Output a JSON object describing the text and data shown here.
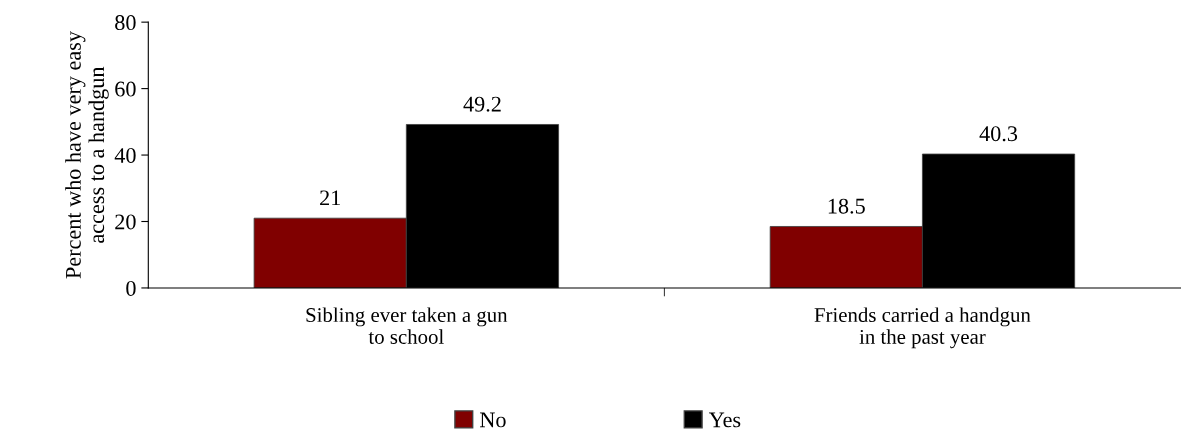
{
  "chart_data": {
    "type": "bar",
    "ylabel": "Percent who have very easy\naccess to a handgun",
    "categories": [
      "Sibling ever taken a gun\nto school",
      "Friends carried a handgun\nin the past year"
    ],
    "series": [
      {
        "name": "No",
        "color": "#800000",
        "values": [
          21,
          18.5
        ]
      },
      {
        "name": "Yes",
        "color": "#000000",
        "values": [
          49.2,
          40.3
        ]
      }
    ],
    "ylim": [
      0,
      80
    ],
    "yticks": [
      0,
      20,
      40,
      60,
      80
    ],
    "data_labels": true,
    "grid": false,
    "legend": "bottom"
  }
}
